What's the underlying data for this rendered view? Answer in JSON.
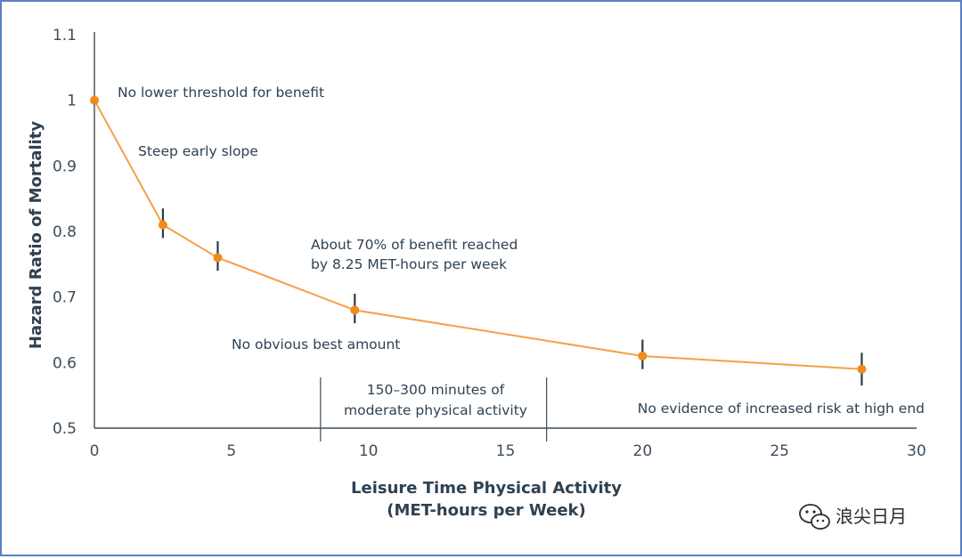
{
  "chart_data": {
    "type": "line",
    "x": [
      0,
      2.5,
      4.5,
      9.5,
      20,
      28
    ],
    "series": [
      {
        "values": [
          1.0,
          0.81,
          0.76,
          0.68,
          0.61,
          0.59
        ],
        "error_low": [
          null,
          0.79,
          0.74,
          0.66,
          0.59,
          0.565
        ],
        "error_high": [
          null,
          0.835,
          0.785,
          0.705,
          0.635,
          0.615
        ]
      }
    ],
    "xlabel_line1": "Leisure Time Physical Activity",
    "xlabel_line2": "(MET-hours per Week)",
    "ylabel": "Hazard Ratio of Mortality",
    "xlim": [
      0,
      30
    ],
    "ylim": [
      0.5,
      1.1
    ],
    "x_ticks": [
      "0",
      "5",
      "10",
      "15",
      "20",
      "25",
      "30"
    ],
    "y_ticks": [
      "0.5",
      "0.6",
      "0.7",
      "0.8",
      "0.9",
      "1",
      "1.1"
    ],
    "grid": false,
    "guideline_x": [
      8.25,
      16.5
    ],
    "annotations": {
      "no_lower_threshold": "No lower threshold for benefit",
      "steep_slope": "Steep early slope",
      "benefit_line1": "About 70% of benefit reached",
      "benefit_line2": "by 8.25 MET-hours per week",
      "no_best_amount": "No obvious best amount",
      "range_line1": "150–300 minutes of",
      "range_line2": "moderate physical activity",
      "no_increased_risk": "No evidence of increased risk at high end"
    },
    "colors": {
      "line": "#f5a04a",
      "marker": "#ef8a1c",
      "error_bar": "#2f3b46",
      "axis": "#3c4d5c",
      "text": "#2f4151"
    }
  },
  "watermark": {
    "icon": "wechat-icon",
    "text": "浪尖日月"
  }
}
